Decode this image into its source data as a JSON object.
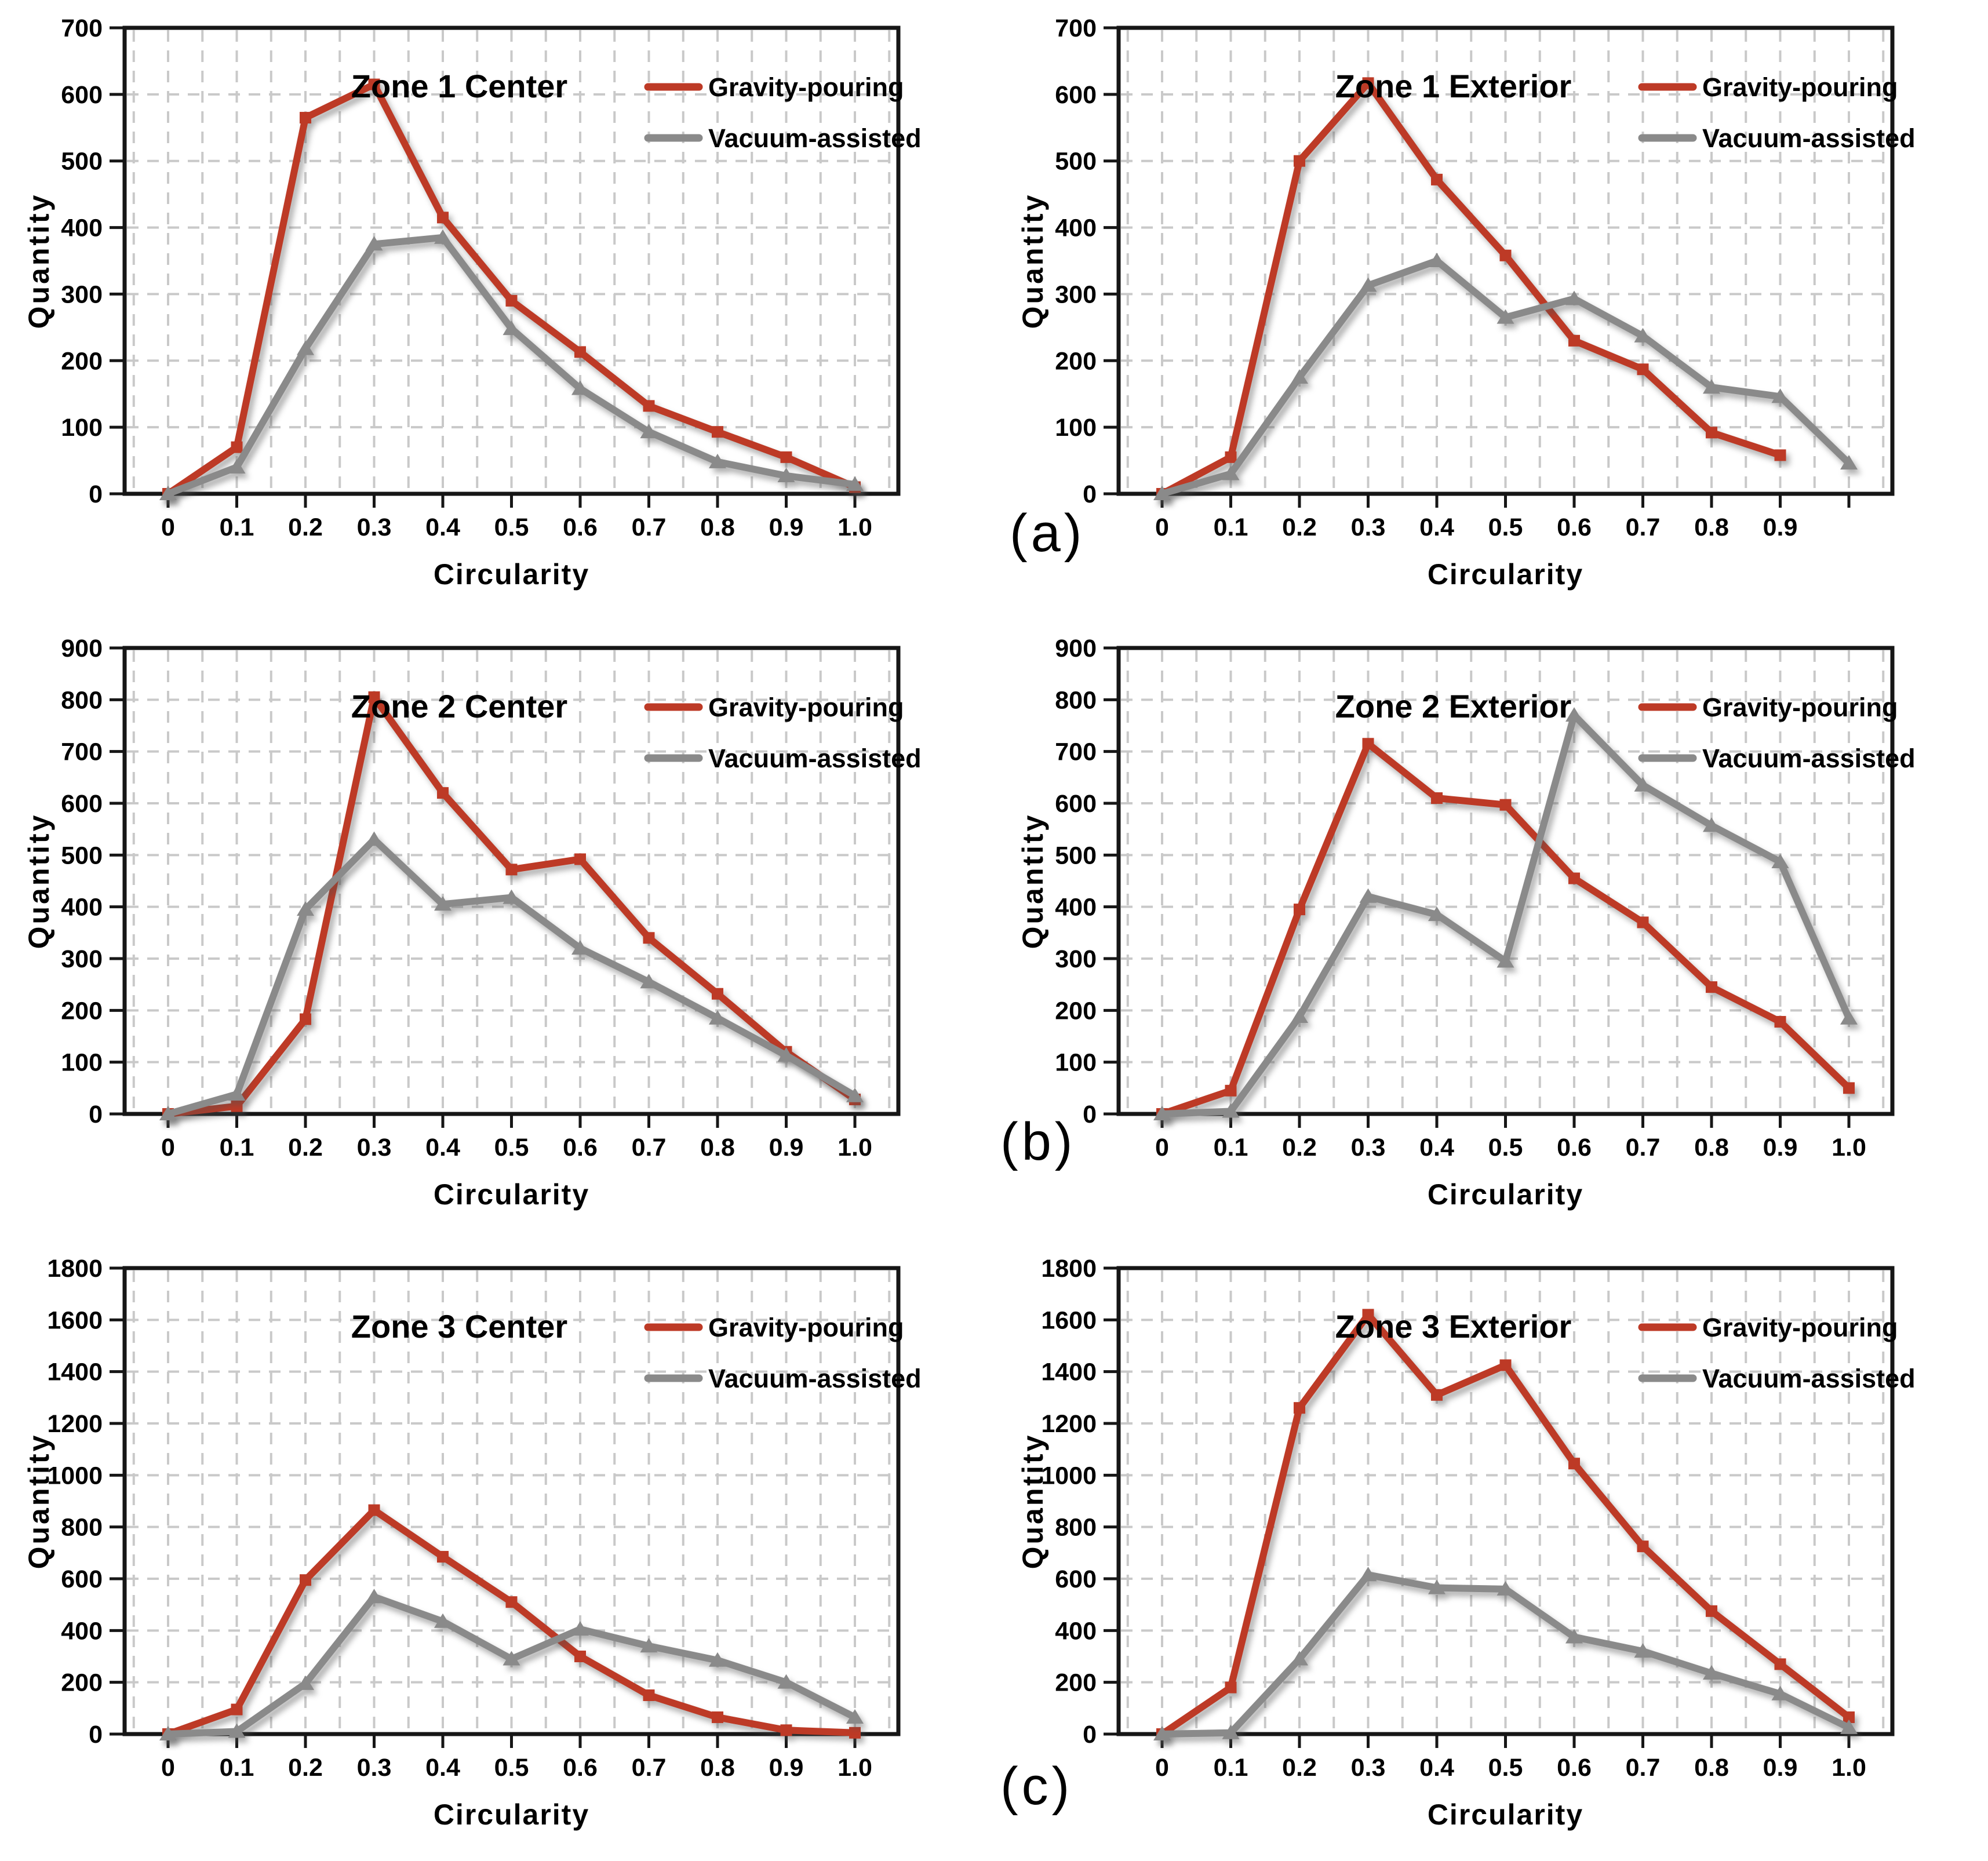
{
  "figure": {
    "panel_letters": [
      "(a)",
      "(b)",
      "(c)"
    ],
    "xlabel": "Circularity",
    "ylabel": "Quantity",
    "legend": [
      "Gravity-pouring",
      "Vacuum-assisted"
    ],
    "colors": {
      "gravity": "#bd3a26",
      "vacuum": "#8a8a8a",
      "grid": "#c9c9c9",
      "axis": "#161616",
      "text": "#000000",
      "background": "#ffffff"
    }
  },
  "chart_data": [
    {
      "type": "line",
      "title": "Zone 1 Center",
      "xlabel": "Circularity",
      "ylabel": "Quantity",
      "ylim": [
        0,
        700
      ],
      "ystep": 100,
      "grid": "dashed",
      "legend_position": "top-right",
      "x": [
        0,
        0.1,
        0.2,
        0.3,
        0.4,
        0.5,
        0.6,
        0.7,
        0.8,
        0.9,
        1.0
      ],
      "xticklabels": [
        "0",
        "0.1",
        "0.2",
        "0.3",
        "0.4",
        "0.5",
        "0.6",
        "0.7",
        "0.8",
        "0.9",
        "1.0"
      ],
      "series": [
        {
          "name": "Gravity-pouring",
          "color": "#bd3a26",
          "marker": "square",
          "values": [
            0,
            70,
            565,
            615,
            415,
            290,
            213,
            132,
            93,
            55,
            10
          ]
        },
        {
          "name": "Vacuum-assisted",
          "color": "#8a8a8a",
          "marker": "triangle",
          "values": [
            0,
            40,
            218,
            375,
            385,
            248,
            158,
            93,
            48,
            27,
            14
          ]
        }
      ]
    },
    {
      "type": "line",
      "title": "Zone 1 Exterior",
      "xlabel": "Circularity",
      "ylabel": "Quantity",
      "ylim": [
        0,
        700
      ],
      "ystep": 100,
      "grid": "dashed",
      "legend_position": "top-right",
      "x": [
        0,
        0.1,
        0.2,
        0.3,
        0.4,
        0.5,
        0.6,
        0.7,
        0.8,
        0.9,
        1.0
      ],
      "xticklabels": [
        "0",
        "0.1",
        "0.2",
        "0.3",
        "0.4",
        "0.5",
        "0.6",
        "0.7",
        "0.8",
        "0.9",
        ""
      ],
      "series": [
        {
          "name": "Gravity-pouring",
          "color": "#bd3a26",
          "marker": "square",
          "values": [
            0,
            55,
            500,
            617,
            472,
            358,
            230,
            187,
            92,
            58,
            null
          ]
        },
        {
          "name": "Vacuum-assisted",
          "color": "#8a8a8a",
          "marker": "triangle",
          "values": [
            0,
            30,
            175,
            313,
            350,
            265,
            293,
            237,
            160,
            146,
            46
          ]
        }
      ]
    },
    {
      "type": "line",
      "title": "Zone 2 Center",
      "xlabel": "Circularity",
      "ylabel": "Quantity",
      "ylim": [
        0,
        900
      ],
      "ystep": 100,
      "grid": "dashed",
      "legend_position": "top-right",
      "x": [
        0,
        0.1,
        0.2,
        0.3,
        0.4,
        0.5,
        0.6,
        0.7,
        0.8,
        0.9,
        1.0
      ],
      "xticklabels": [
        "0",
        "0.1",
        "0.2",
        "0.3",
        "0.4",
        "0.5",
        "0.6",
        "0.7",
        "0.8",
        "0.9",
        "1.0"
      ],
      "series": [
        {
          "name": "Gravity-pouring",
          "color": "#bd3a26",
          "marker": "square",
          "values": [
            0,
            15,
            183,
            805,
            620,
            472,
            492,
            340,
            232,
            120,
            28
          ]
        },
        {
          "name": "Vacuum-assisted",
          "color": "#8a8a8a",
          "marker": "triangle",
          "values": [
            0,
            38,
            395,
            530,
            405,
            418,
            320,
            255,
            185,
            113,
            35
          ]
        }
      ]
    },
    {
      "type": "line",
      "title": "Zone 2 Exterior",
      "xlabel": "Circularity",
      "ylabel": "Quantity",
      "ylim": [
        0,
        900
      ],
      "ystep": 100,
      "grid": "dashed",
      "legend_position": "top-right",
      "x": [
        0,
        0.1,
        0.2,
        0.3,
        0.4,
        0.5,
        0.6,
        0.7,
        0.8,
        0.9,
        1.0
      ],
      "xticklabels": [
        "0",
        "0.1",
        "0.2",
        "0.3",
        "0.4",
        "0.5",
        "0.6",
        "0.7",
        "0.8",
        "0.9",
        "1.0"
      ],
      "series": [
        {
          "name": "Gravity-pouring",
          "color": "#bd3a26",
          "marker": "square",
          "values": [
            0,
            45,
            395,
            715,
            610,
            597,
            455,
            370,
            245,
            178,
            50
          ]
        },
        {
          "name": "Vacuum-assisted",
          "color": "#8a8a8a",
          "marker": "triangle",
          "values": [
            0,
            5,
            188,
            420,
            385,
            295,
            770,
            635,
            557,
            487,
            185
          ]
        }
      ]
    },
    {
      "type": "line",
      "title": "Zone 3 Center",
      "xlabel": "Circularity",
      "ylabel": "Quantity",
      "ylim": [
        0,
        1800
      ],
      "ystep": 200,
      "grid": "dashed",
      "legend_position": "top-right",
      "x": [
        0,
        0.1,
        0.2,
        0.3,
        0.4,
        0.5,
        0.6,
        0.7,
        0.8,
        0.9,
        1.0
      ],
      "xticklabels": [
        "0",
        "0.1",
        "0.2",
        "0.3",
        "0.4",
        "0.5",
        "0.6",
        "0.7",
        "0.8",
        "0.9",
        "1.0"
      ],
      "series": [
        {
          "name": "Gravity-pouring",
          "color": "#bd3a26",
          "marker": "square",
          "values": [
            0,
            95,
            595,
            865,
            685,
            510,
            300,
            150,
            65,
            15,
            5
          ]
        },
        {
          "name": "Vacuum-assisted",
          "color": "#8a8a8a",
          "marker": "triangle",
          "values": [
            0,
            10,
            195,
            530,
            435,
            290,
            405,
            340,
            285,
            200,
            65
          ]
        }
      ]
    },
    {
      "type": "line",
      "title": "Zone 3 Exterior",
      "xlabel": "Circularity",
      "ylabel": "Quantity",
      "ylim": [
        0,
        1800
      ],
      "ystep": 200,
      "grid": "dashed",
      "legend_position": "top-right",
      "x": [
        0,
        0.1,
        0.2,
        0.3,
        0.4,
        0.5,
        0.6,
        0.7,
        0.8,
        0.9,
        1.0
      ],
      "xticklabels": [
        "0",
        "0.1",
        "0.2",
        "0.3",
        "0.4",
        "0.5",
        "0.6",
        "0.7",
        "0.8",
        "0.9",
        "1.0"
      ],
      "series": [
        {
          "name": "Gravity-pouring",
          "color": "#bd3a26",
          "marker": "square",
          "values": [
            0,
            180,
            1260,
            1620,
            1310,
            1425,
            1045,
            725,
            475,
            270,
            65
          ]
        },
        {
          "name": "Vacuum-assisted",
          "color": "#8a8a8a",
          "marker": "triangle",
          "values": [
            0,
            5,
            290,
            615,
            565,
            560,
            375,
            320,
            235,
            155,
            25
          ]
        }
      ]
    }
  ]
}
